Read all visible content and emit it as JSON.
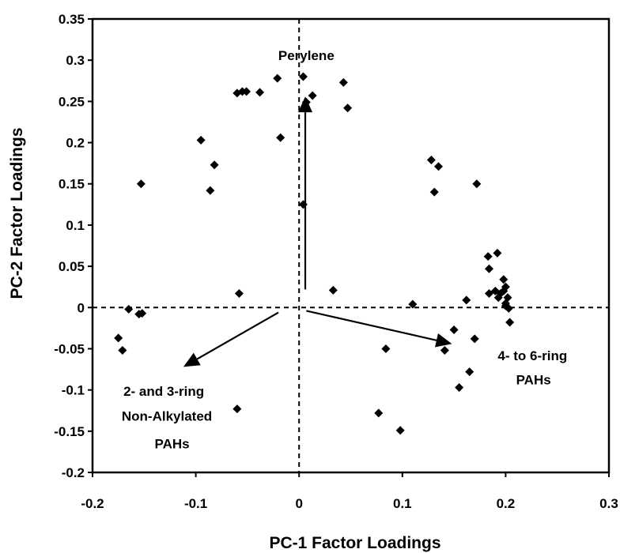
{
  "chart_data": {
    "type": "scatter",
    "title": "",
    "xlabel": "PC-1 Factor Loadings",
    "ylabel": "PC-2 Factor Loadings",
    "xlim": [
      -0.2,
      0.3
    ],
    "ylim": [
      -0.2,
      0.35
    ],
    "x_ticks": [
      "-0.2",
      "-0.1",
      "0",
      "0.1",
      "0.2",
      "0.3"
    ],
    "y_ticks": [
      "0.35",
      "0.3",
      "0.25",
      "0.2",
      "0.15",
      "0.1",
      "0.05",
      "0",
      "-0.05",
      "-0.1",
      "-0.15",
      "-0.2"
    ],
    "grid": false,
    "reference_lines": {
      "x": 0,
      "y": 0,
      "style": "dashed"
    },
    "marker": "diamond",
    "marker_color": "#000000",
    "points": [
      [
        -0.175,
        -0.037
      ],
      [
        -0.171,
        -0.052
      ],
      [
        -0.165,
        -0.002
      ],
      [
        -0.155,
        -0.008
      ],
      [
        -0.152,
        -0.007
      ],
      [
        -0.153,
        0.15
      ],
      [
        -0.095,
        0.203
      ],
      [
        -0.086,
        0.142
      ],
      [
        -0.082,
        0.173
      ],
      [
        -0.06,
        0.26
      ],
      [
        -0.055,
        0.262
      ],
      [
        -0.051,
        0.262
      ],
      [
        -0.038,
        0.261
      ],
      [
        -0.021,
        0.278
      ],
      [
        -0.018,
        0.206
      ],
      [
        -0.058,
        0.017
      ],
      [
        -0.06,
        -0.123
      ],
      [
        0.004,
        0.28
      ],
      [
        0.013,
        0.257
      ],
      [
        0.007,
        0.249
      ],
      [
        0.043,
        0.273
      ],
      [
        0.047,
        0.242
      ],
      [
        0.004,
        0.125
      ],
      [
        0.033,
        0.021
      ],
      [
        0.084,
        -0.05
      ],
      [
        0.077,
        -0.128
      ],
      [
        0.098,
        -0.149
      ],
      [
        0.11,
        0.004
      ],
      [
        0.128,
        0.179
      ],
      [
        0.131,
        0.14
      ],
      [
        0.135,
        0.171
      ],
      [
        0.172,
        0.15
      ],
      [
        0.141,
        -0.052
      ],
      [
        0.15,
        -0.027
      ],
      [
        0.155,
        -0.097
      ],
      [
        0.162,
        0.009
      ],
      [
        0.165,
        -0.078
      ],
      [
        0.17,
        -0.038
      ],
      [
        0.183,
        0.062
      ],
      [
        0.184,
        0.047
      ],
      [
        0.184,
        0.017
      ],
      [
        0.192,
        0.066
      ],
      [
        0.19,
        0.02
      ],
      [
        0.193,
        0.012
      ],
      [
        0.195,
        0.017
      ],
      [
        0.198,
        0.034
      ],
      [
        0.198,
        0.02
      ],
      [
        0.2,
        0.025
      ],
      [
        0.2,
        0.005
      ],
      [
        0.2,
        0.002
      ],
      [
        0.202,
        0.012
      ],
      [
        0.203,
        -0.001
      ],
      [
        0.204,
        -0.018
      ]
    ],
    "arrows": [
      {
        "from": [
          0.006,
          0.022
        ],
        "to": [
          0.006,
          0.256
        ]
      },
      {
        "from": [
          -0.02,
          -0.006
        ],
        "to": [
          -0.112,
          -0.072
        ]
      },
      {
        "from": [
          0.007,
          -0.004
        ],
        "to": [
          0.148,
          -0.044
        ]
      }
    ],
    "annotations": [
      {
        "text": "Perylene",
        "x": 0.007,
        "y": 0.3
      },
      {
        "text": "2- and 3-ring",
        "x": -0.131,
        "y": -0.107
      },
      {
        "text": "Non-Alkylated",
        "x": -0.128,
        "y": -0.137
      },
      {
        "text": "PAHs",
        "x": -0.123,
        "y": -0.171
      },
      {
        "text": "4- to 6-ring",
        "x": 0.226,
        "y": -0.064
      },
      {
        "text": "PAHs",
        "x": 0.227,
        "y": -0.093
      }
    ]
  }
}
